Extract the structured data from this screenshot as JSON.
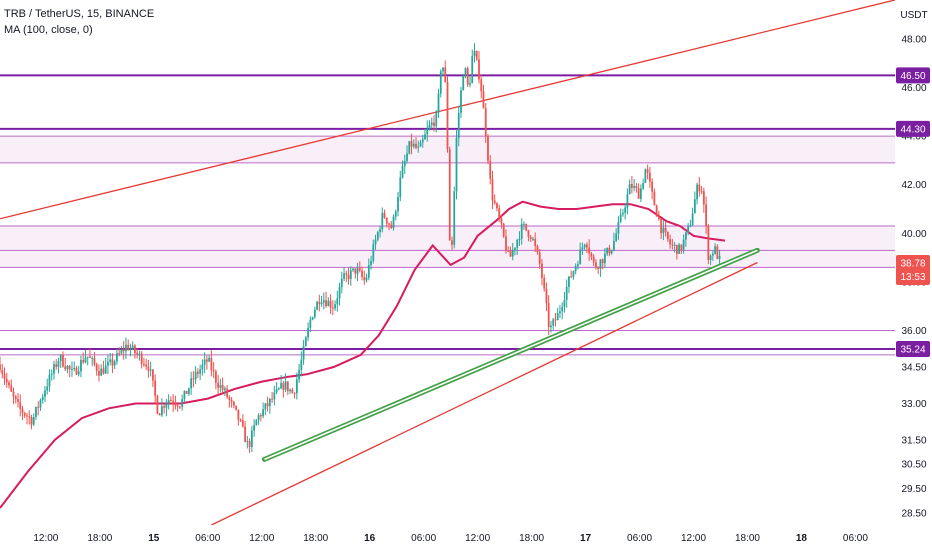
{
  "header": {
    "symbol": "TRB / TetherUS, 15, BINANCE",
    "indicator": "MA (100, close, 0)",
    "currency": "USDT"
  },
  "colors": {
    "up": "#26a69a",
    "down": "#ef5350",
    "ma": "#d81b60",
    "level_line": "#7b1fa2",
    "zone_line": "#ab47bc",
    "zone_fill": "#f3e5f5",
    "channel": "#e53935",
    "support": "#43a047",
    "price_badge": "#ef5350"
  },
  "chart_data": {
    "type": "candlestick",
    "title": "TRB / TetherUS, 15, BINANCE",
    "ylim": [
      28.0,
      49.6
    ],
    "y_ticks": [
      "28.50",
      "29.50",
      "30.50",
      "31.50",
      "33.00",
      "34.50",
      "36.00",
      "38.00",
      "40.00",
      "42.00",
      "44.00",
      "46.00",
      "48.00"
    ],
    "x_ticks": [
      "12:00",
      "18:00",
      "15",
      "06:00",
      "12:00",
      "18:00",
      "16",
      "06:00",
      "12:00",
      "18:00",
      "17",
      "06:00",
      "12:00",
      "18:00",
      "06:00"
    ],
    "x_tick_hours": [
      12,
      18,
      24,
      30,
      36,
      42,
      48,
      54,
      60,
      66,
      72,
      78,
      84,
      90,
      102
    ],
    "x_tick_bold": [
      "15",
      "16",
      "17",
      "18"
    ],
    "date_markers": [
      {
        "label": "18",
        "hour": 96
      }
    ],
    "xlim_hours": [
      6.9,
      106.4
    ],
    "last_hour": 87.0,
    "close_path": [
      [
        6.9,
        34.6
      ],
      [
        8,
        33.5
      ],
      [
        9,
        32.8
      ],
      [
        10.5,
        32.3
      ],
      [
        12,
        33.7
      ],
      [
        13.5,
        34.9
      ],
      [
        15,
        34.2
      ],
      [
        16.5,
        35.0
      ],
      [
        18,
        34.3
      ],
      [
        19.5,
        34.7
      ],
      [
        21,
        35.4
      ],
      [
        22.5,
        34.9
      ],
      [
        23.5,
        34.5
      ],
      [
        24.5,
        32.6
      ],
      [
        25.5,
        33.2
      ],
      [
        27,
        33.0
      ],
      [
        28.5,
        34.1
      ],
      [
        30,
        34.8
      ],
      [
        31,
        33.9
      ],
      [
        32,
        33.4
      ],
      [
        33.5,
        32.3
      ],
      [
        34.5,
        31.2
      ],
      [
        35.5,
        32.4
      ],
      [
        37,
        33.1
      ],
      [
        38.5,
        33.8
      ],
      [
        39.5,
        33.4
      ],
      [
        40.5,
        34.9
      ],
      [
        41.5,
        36.6
      ],
      [
        42.5,
        37.4
      ],
      [
        44,
        37.0
      ],
      [
        45,
        38.1
      ],
      [
        46.5,
        38.5
      ],
      [
        47.5,
        38.0
      ],
      [
        48.5,
        39.5
      ],
      [
        49.5,
        40.8
      ],
      [
        50.5,
        40.2
      ],
      [
        51.5,
        42.4
      ],
      [
        52.5,
        43.7
      ],
      [
        53.5,
        43.4
      ],
      [
        54.5,
        44.3
      ],
      [
        55.5,
        44.8
      ],
      [
        56,
        47.3
      ],
      [
        56.5,
        45.8
      ],
      [
        57,
        38.3
      ],
      [
        57.7,
        44.3
      ],
      [
        58.5,
        47.0
      ],
      [
        59,
        45.8
      ],
      [
        59.5,
        47.6
      ],
      [
        60.3,
        46.3
      ],
      [
        61,
        43.8
      ],
      [
        61.5,
        41.7
      ],
      [
        62.5,
        40.4
      ],
      [
        63.5,
        38.9
      ],
      [
        64,
        39.4
      ],
      [
        65,
        40.3
      ],
      [
        66,
        39.9
      ],
      [
        67,
        38.6
      ],
      [
        68,
        36.0
      ],
      [
        69,
        36.7
      ],
      [
        70,
        37.9
      ],
      [
        71,
        38.8
      ],
      [
        72,
        39.8
      ],
      [
        73,
        38.6
      ],
      [
        74,
        39.0
      ],
      [
        75,
        39.5
      ],
      [
        76,
        40.7
      ],
      [
        77,
        42.0
      ],
      [
        78,
        41.6
      ],
      [
        78.7,
        42.7
      ],
      [
        79.5,
        41.4
      ],
      [
        80.5,
        40.1
      ],
      [
        81.5,
        39.5
      ],
      [
        82.5,
        39.3
      ],
      [
        83.5,
        40.2
      ],
      [
        84.5,
        42.0
      ],
      [
        85,
        41.8
      ],
      [
        85.7,
        38.9
      ],
      [
        86.3,
        39.4
      ],
      [
        87,
        38.8
      ]
    ],
    "ma_path": [
      [
        6.9,
        28.7
      ],
      [
        10,
        30.2
      ],
      [
        13,
        31.5
      ],
      [
        16,
        32.4
      ],
      [
        19,
        32.8
      ],
      [
        22,
        33.0
      ],
      [
        24,
        33.0
      ],
      [
        27,
        33.0
      ],
      [
        30,
        33.2
      ],
      [
        33,
        33.6
      ],
      [
        36,
        33.9
      ],
      [
        39,
        34.1
      ],
      [
        41,
        34.2
      ],
      [
        44,
        34.5
      ],
      [
        47,
        35.0
      ],
      [
        49,
        35.8
      ],
      [
        51,
        37.0
      ],
      [
        53,
        38.5
      ],
      [
        55,
        39.5
      ],
      [
        57,
        38.7
      ],
      [
        58.5,
        39.0
      ],
      [
        60,
        39.9
      ],
      [
        62,
        40.5
      ],
      [
        63.5,
        41.0
      ],
      [
        65,
        41.3
      ],
      [
        67,
        41.1
      ],
      [
        69,
        41.0
      ],
      [
        71,
        41.0
      ],
      [
        73,
        41.1
      ],
      [
        75,
        41.2
      ],
      [
        77,
        41.2
      ],
      [
        79,
        41.0
      ],
      [
        81,
        40.5
      ],
      [
        82.5,
        40.3
      ],
      [
        84,
        39.9
      ],
      [
        85.5,
        39.8
      ],
      [
        87.5,
        39.7
      ]
    ],
    "levels": [
      {
        "price": 46.5,
        "style": "solid",
        "label": "46.50"
      },
      {
        "price": 44.3,
        "style": "solid",
        "label": "44.30"
      },
      {
        "price": 35.24,
        "style": "solid",
        "label": "35.24"
      }
    ],
    "zone_lines": [
      44.0,
      42.9,
      40.3,
      39.3,
      38.6,
      36.0,
      35.0
    ],
    "zones": [
      [
        42.9,
        44.0
      ],
      [
        39.3,
        40.3
      ],
      [
        38.6,
        39.3
      ]
    ],
    "channel_upper": [
      [
        6.9,
        40.6
      ],
      [
        106.4,
        49.6
      ]
    ],
    "channel_lower": [
      [
        30.4,
        28.0
      ],
      [
        91.1,
        38.8
      ]
    ],
    "support_line": [
      [
        36.3,
        30.7
      ],
      [
        91.1,
        39.3
      ]
    ],
    "current_price": {
      "value": 38.78,
      "label": "38.78",
      "countdown": "13:53"
    },
    "legend": "MA (100, close, 0)"
  }
}
